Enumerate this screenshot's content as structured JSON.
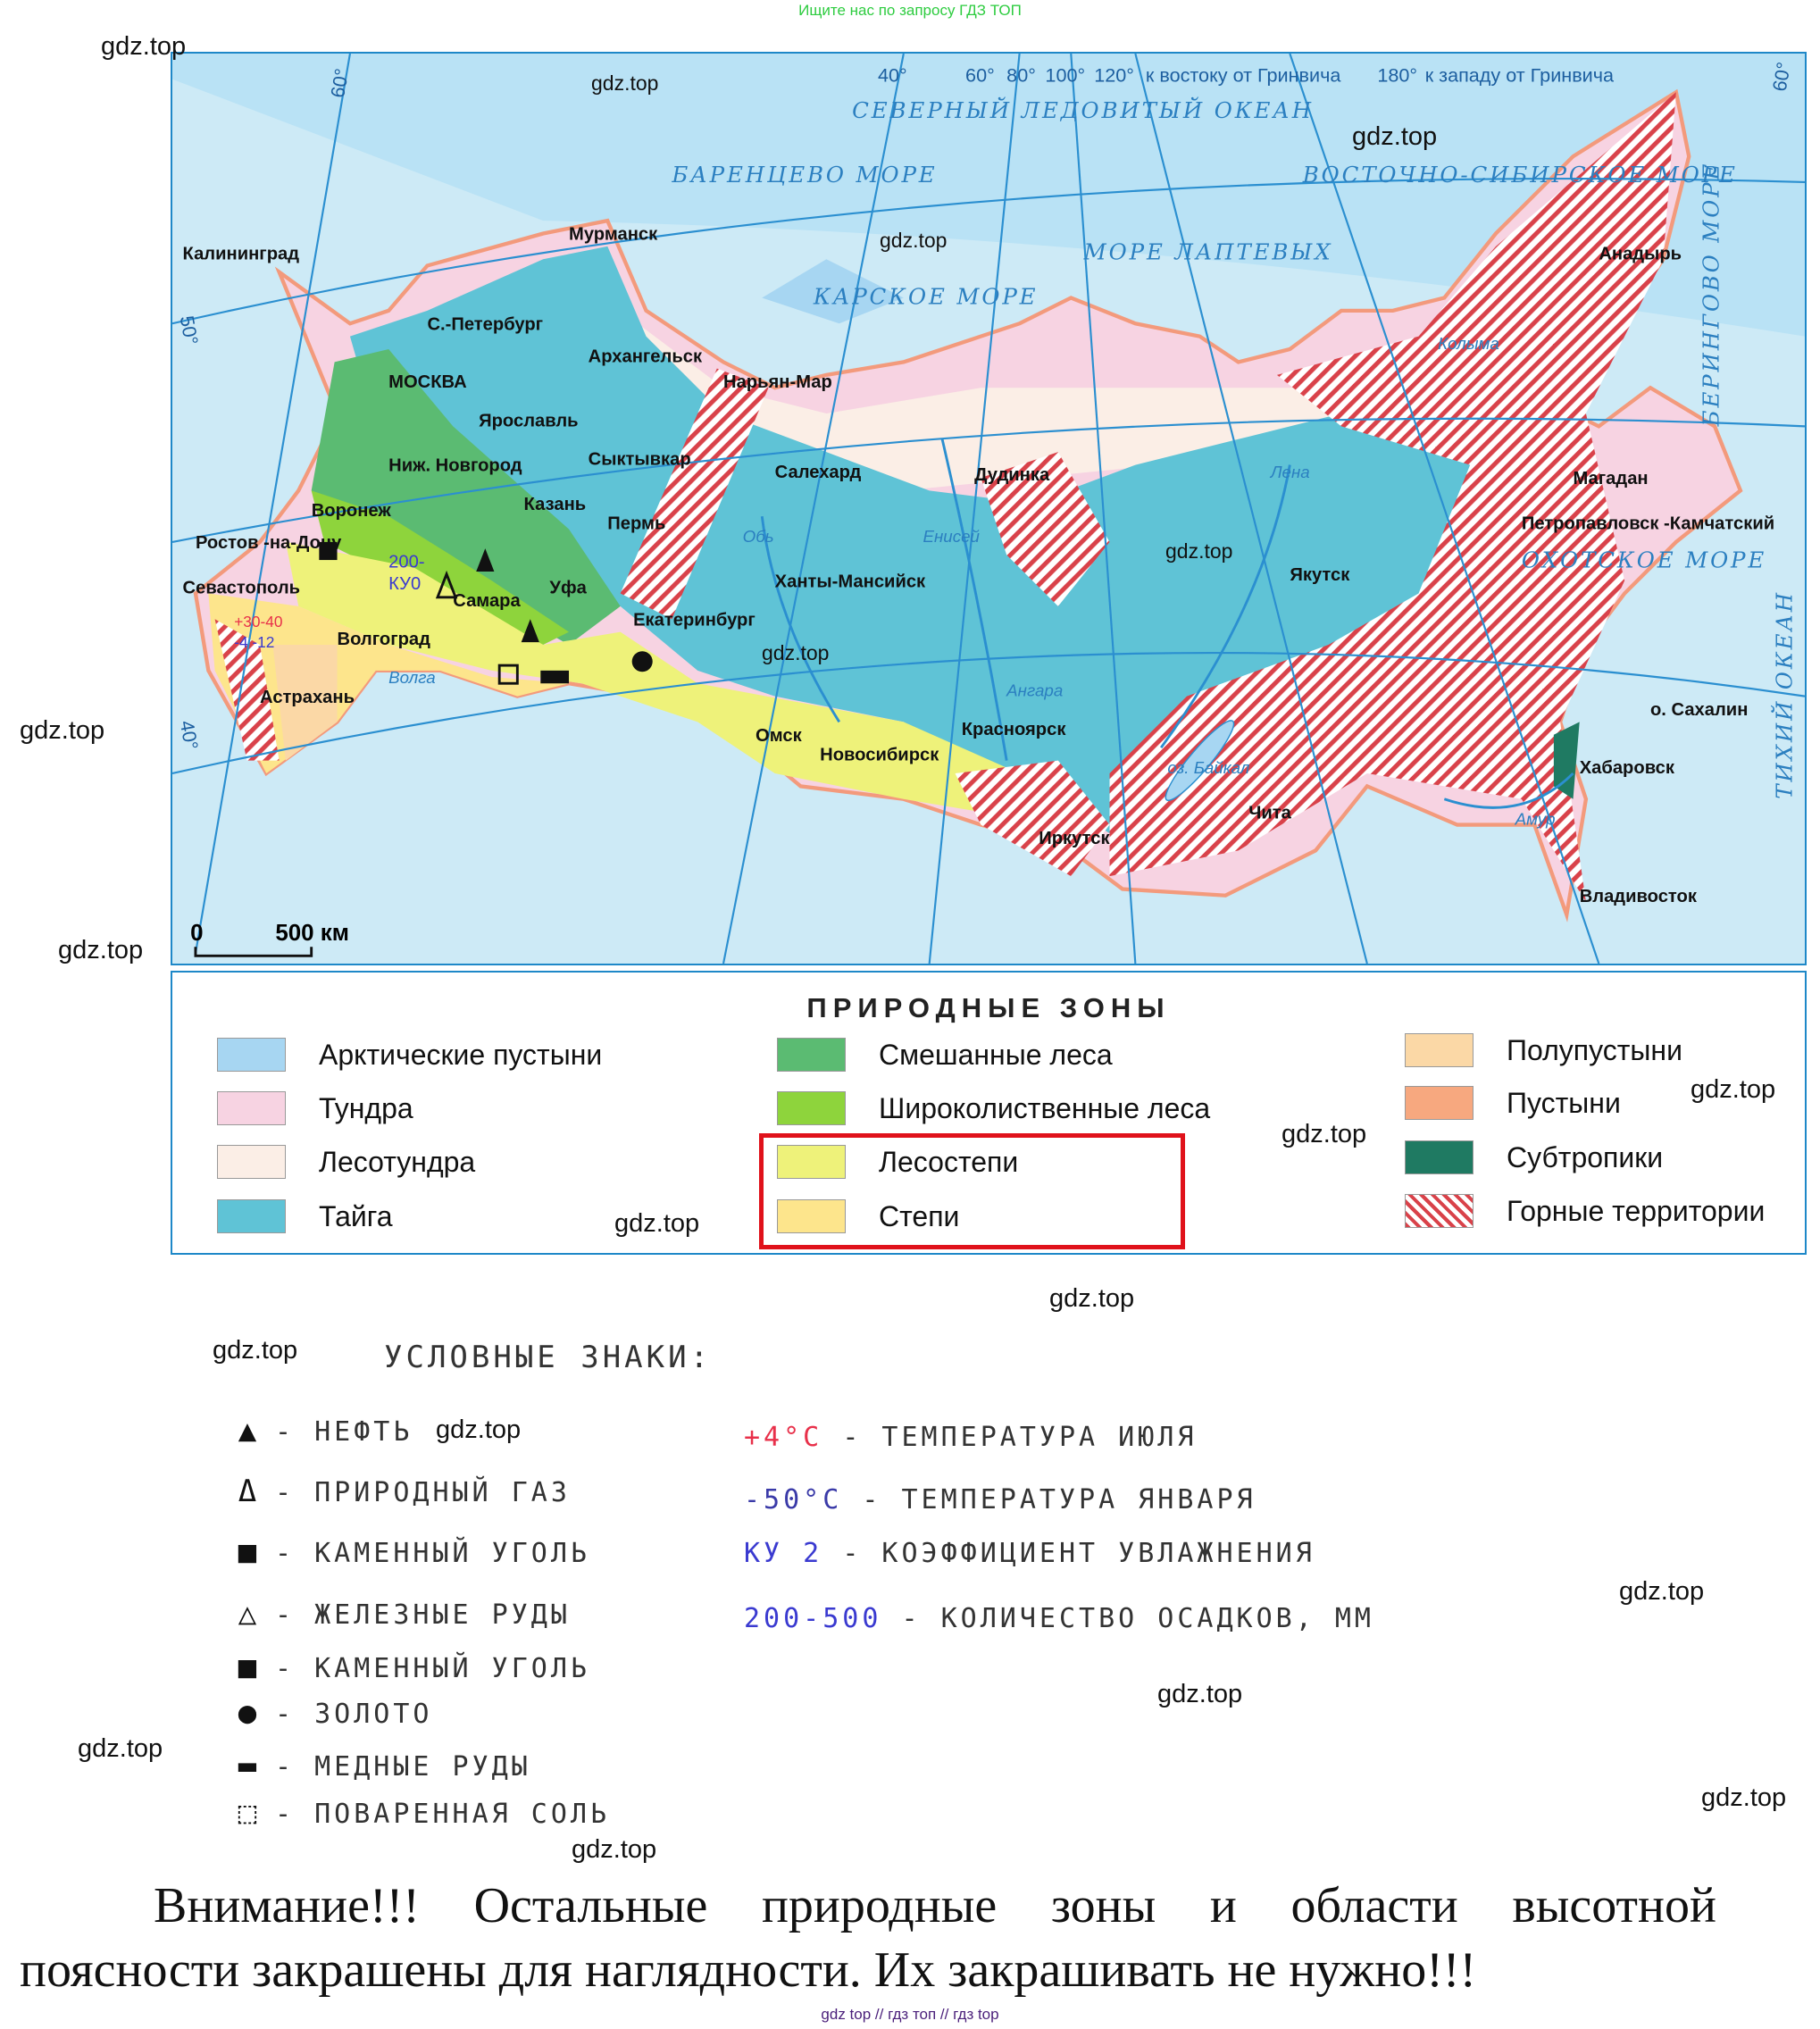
{
  "top_note": "Ищите нас по запросу ГДЗ ТОП",
  "map": {
    "degrees": [
      "40°",
      "60°",
      "80°",
      "100°",
      "120°",
      "к востоку от Гринвича",
      "180°",
      "к западу от Гринвича",
      "60°",
      "50°",
      "40°",
      "60°"
    ],
    "seas": [
      "СЕВЕРНЫЙ ЛЕДОВИТЫЙ ОКЕАН",
      "БАРЕНЦЕВО МОРЕ",
      "КАРСКОЕ МОРЕ",
      "МОРЕ ЛАПТЕВЫХ",
      "ВОСТОЧНО-СИБИРСКОЕ МОРЕ",
      "БЕРИНГОВО МОРЕ",
      "ОХОТСКОЕ МОРЕ",
      "ТИХИЙ ОКЕАН"
    ],
    "rivers": [
      "Обь",
      "Енисей",
      "Лена",
      "Ангара",
      "оз. Байкал",
      "Амур",
      "Волга",
      "Колыма"
    ],
    "cities": [
      "Калининград",
      "МОСКВА",
      "С.-Петербург",
      "Мурманск",
      "Архангельск",
      "Ярославль",
      "Нарьян-Мар",
      "Салехард",
      "Дудинка",
      "Сыктывкар",
      "Пермь",
      "Казань",
      "Ниж. Новгород",
      "Воронеж",
      "Ростов -на-Дону",
      "Севастополь",
      "Самара",
      "Уфа",
      "Волгоград",
      "Астрахань",
      "Екатеринбург",
      "Ханты-Мансийск",
      "Омск",
      "Новосибирск",
      "Красноярск",
      "Иркутск",
      "Чита",
      "Якутск",
      "Магадан",
      "Анадырь",
      "Петропавловск -Камчатский",
      "Хабаровск",
      "Владивосток",
      "о. Сахалин"
    ],
    "annotations": [
      "200-",
      "КУ0",
      "+30-40",
      "-4 -12"
    ],
    "scale": {
      "zero": "0",
      "distance": "500 км"
    }
  },
  "legend": {
    "title": "ПРИРОДНЫЕ ЗОНЫ",
    "items": [
      {
        "label": "Арктические пустыни",
        "color": "#a7d6f2"
      },
      {
        "label": "Тундра",
        "color": "#f7d3e2"
      },
      {
        "label": "Лесотундра",
        "color": "#fbeee6"
      },
      {
        "label": "Тайга",
        "color": "#5fc3d6"
      },
      {
        "label": "Смешанные леса",
        "color": "#5bbb72"
      },
      {
        "label": "Широколиственные леса",
        "color": "#8ed43c"
      },
      {
        "label": "Лесостепи",
        "color": "#eef27a"
      },
      {
        "label": "Степи",
        "color": "#fde58c"
      },
      {
        "label": "Полупустыни",
        "color": "#fbd8a6"
      },
      {
        "label": "Пустыни",
        "color": "#f7a87f"
      },
      {
        "label": "Субтропики",
        "color": "#1f7a62"
      },
      {
        "label": "Горные территории",
        "color": "hatch-red"
      }
    ],
    "highlight_color": "#e0121b"
  },
  "symbols": {
    "title": "УСЛОВНЫЕ ЗНАКИ:",
    "left": [
      {
        "icon": "oil-triangle-filled",
        "text": "- НЕФТЬ"
      },
      {
        "icon": "gas-triangle-outline",
        "text": "- ПРИРОДНЫЙ ГАЗ"
      },
      {
        "icon": "coal-square-filled",
        "text": "- КАМЕННЫЙ УГОЛЬ"
      },
      {
        "icon": "iron-triangle-outline",
        "text": "- ЖЕЛЕЗНЫЕ РУДЫ"
      },
      {
        "icon": "coal-square-filled",
        "text": "- КАМЕННЫЙ УГОЛЬ"
      },
      {
        "icon": "gold-circle-filled",
        "text": "- ЗОЛОТО"
      },
      {
        "icon": "copper-rect-filled",
        "text": "- МЕДНЫЕ РУДЫ"
      },
      {
        "icon": "salt-cube-outline",
        "text": "- ПОВАРЕННАЯ СОЛЬ"
      }
    ],
    "right": [
      {
        "key": "+4°С",
        "text": "- ТЕМПЕРАТУРА ИЮЛЯ",
        "color": "#e8304a"
      },
      {
        "key": "-50°С",
        "text": "- ТЕМПЕРАТУРА ЯНВАРЯ",
        "color": "#3a3aa8"
      },
      {
        "key": "КУ 2",
        "text": "- КОЭФФИЦИЕНТ УВЛАЖНЕНИЯ",
        "color": "#3a3ad0"
      },
      {
        "key": "200-500",
        "text": "- КОЛИЧЕСТВО ОСАДКОВ, ММ",
        "color": "#3a3ad0"
      }
    ]
  },
  "watermark": "gdz.top",
  "warning": {
    "line1": [
      "Внимание!!!",
      "Остальные",
      "природные",
      "зоны",
      "и",
      "области",
      "высотной"
    ],
    "line2": "поясности закрашены для наглядности. Их закрашивать не нужно!!!"
  },
  "footer": "gdz top  //  гдз топ  //  гдз top"
}
